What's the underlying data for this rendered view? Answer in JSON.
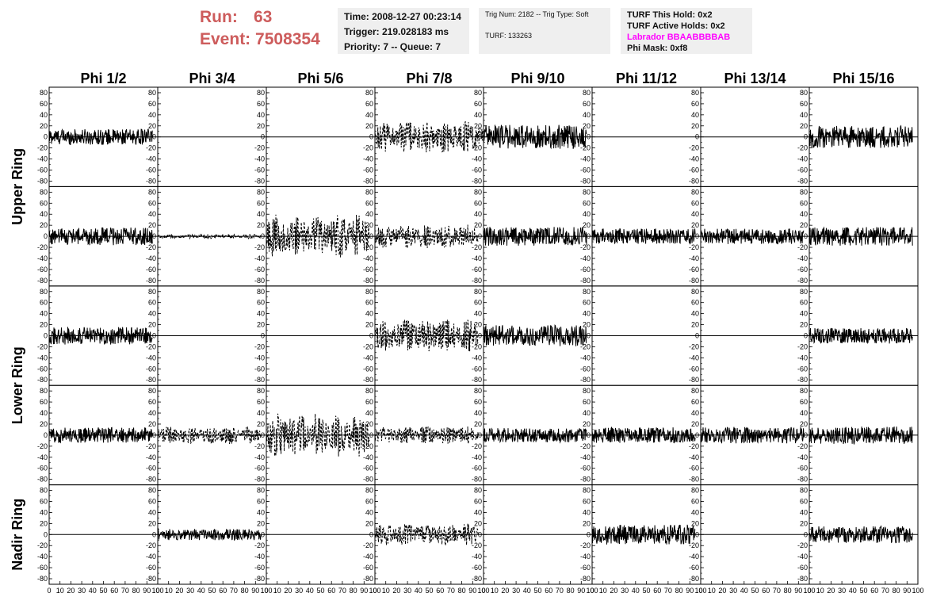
{
  "header": {
    "run_label": "Run:",
    "run_value": "63",
    "event_label": "Event:",
    "event_value": "7508354"
  },
  "info": {
    "time": "Time: 2008-12-27 00:23:14",
    "trigger": "Trigger: 219.028183 ms",
    "priority": "Priority: 7 -- Queue: 7",
    "trig_num": "Trig Num: 2182 -- Trig Type: Soft",
    "turf": "TURF: 133263",
    "turf_this_hold": "TURF This Hold: 0x2",
    "turf_active_holds": "TURF Active Holds: 0x2",
    "labrador": "Labrador BBAABBBBAB",
    "phi_mask": "Phi Mask: 0xf8"
  },
  "colors": {
    "run_text": "#cd5c5c",
    "labrador": "#ff00ff",
    "info_bg": "#efefef"
  },
  "chart_data": {
    "type": "line",
    "columns": [
      "Phi 1/2",
      "Phi 3/4",
      "Phi 5/6",
      "Phi 7/8",
      "Phi 9/10",
      "Phi 11/12",
      "Phi 13/14",
      "Phi 15/16"
    ],
    "rows": [
      "Upper Ring",
      "Lower Ring",
      "Nadir Ring"
    ],
    "xlim": [
      0,
      100
    ],
    "ylim": [
      -90,
      90
    ],
    "x_ticks": [
      "0",
      "10",
      "20",
      "30",
      "40",
      "50",
      "60",
      "70",
      "80",
      "90",
      "100"
    ],
    "y_ticks": [
      "80",
      "60",
      "40",
      "20",
      "0",
      "-20",
      "-40",
      "-60",
      "-80"
    ],
    "grid": false,
    "panels": [
      [
        {
          "amp": 14,
          "style": "solid",
          "xmax": 95
        },
        {
          "amp": 0,
          "style": "flat",
          "xmax": 100
        },
        {
          "amp": 0,
          "style": "flat",
          "xmax": 100
        },
        {
          "amp": 30,
          "style": "dashed",
          "xmax": 100
        },
        {
          "amp": 22,
          "style": "solid",
          "xmax": 95
        },
        {
          "amp": 0,
          "style": "flat",
          "xmax": 100
        },
        {
          "amp": 0,
          "style": "flat",
          "xmax": 100
        },
        {
          "amp": 20,
          "style": "solid",
          "xmax": 95
        }
      ],
      [
        {
          "amp": 16,
          "style": "solid",
          "xmax": 95
        },
        {
          "amp": 4,
          "style": "dashed",
          "xmax": 95
        },
        {
          "amp": 40,
          "style": "dashed",
          "xmax": 95
        },
        {
          "amp": 22,
          "style": "dashed",
          "xmax": 95
        },
        {
          "amp": 17,
          "style": "solid",
          "xmax": 95
        },
        {
          "amp": 14,
          "style": "solid",
          "xmax": 95
        },
        {
          "amp": 14,
          "style": "solid",
          "xmax": 95
        },
        {
          "amp": 17,
          "style": "solid",
          "xmax": 95
        }
      ],
      [
        {
          "amp": 16,
          "style": "solid",
          "xmax": 95
        },
        {
          "amp": 0,
          "style": "flat",
          "xmax": 100
        },
        {
          "amp": 0,
          "style": "flat",
          "xmax": 100
        },
        {
          "amp": 30,
          "style": "dashed",
          "xmax": 95
        },
        {
          "amp": 19,
          "style": "solid",
          "xmax": 95
        },
        {
          "amp": 0,
          "style": "flat",
          "xmax": 100
        },
        {
          "amp": 0,
          "style": "flat",
          "xmax": 100
        },
        {
          "amp": 14,
          "style": "solid",
          "xmax": 95
        }
      ],
      [
        {
          "amp": 14,
          "style": "solid",
          "xmax": 95
        },
        {
          "amp": 16,
          "style": "dashed",
          "xmax": 95
        },
        {
          "amp": 40,
          "style": "dashed",
          "xmax": 95
        },
        {
          "amp": 16,
          "style": "dashed",
          "xmax": 95
        },
        {
          "amp": 13,
          "style": "solid",
          "xmax": 95
        },
        {
          "amp": 14,
          "style": "solid",
          "xmax": 95
        },
        {
          "amp": 15,
          "style": "solid",
          "xmax": 95
        },
        {
          "amp": 16,
          "style": "solid",
          "xmax": 95
        }
      ],
      [
        {
          "amp": 0,
          "style": "flat",
          "xmax": 100
        },
        {
          "amp": 10,
          "style": "solid",
          "xmax": 95
        },
        {
          "amp": 0,
          "style": "flat",
          "xmax": 100
        },
        {
          "amp": 20,
          "style": "dashed",
          "xmax": 95
        },
        {
          "amp": 0,
          "style": "flat",
          "xmax": 100
        },
        {
          "amp": 18,
          "style": "solid",
          "xmax": 95
        },
        {
          "amp": 0,
          "style": "flat",
          "xmax": 100
        },
        {
          "amp": 15,
          "style": "solid",
          "xmax": 95
        }
      ]
    ]
  }
}
